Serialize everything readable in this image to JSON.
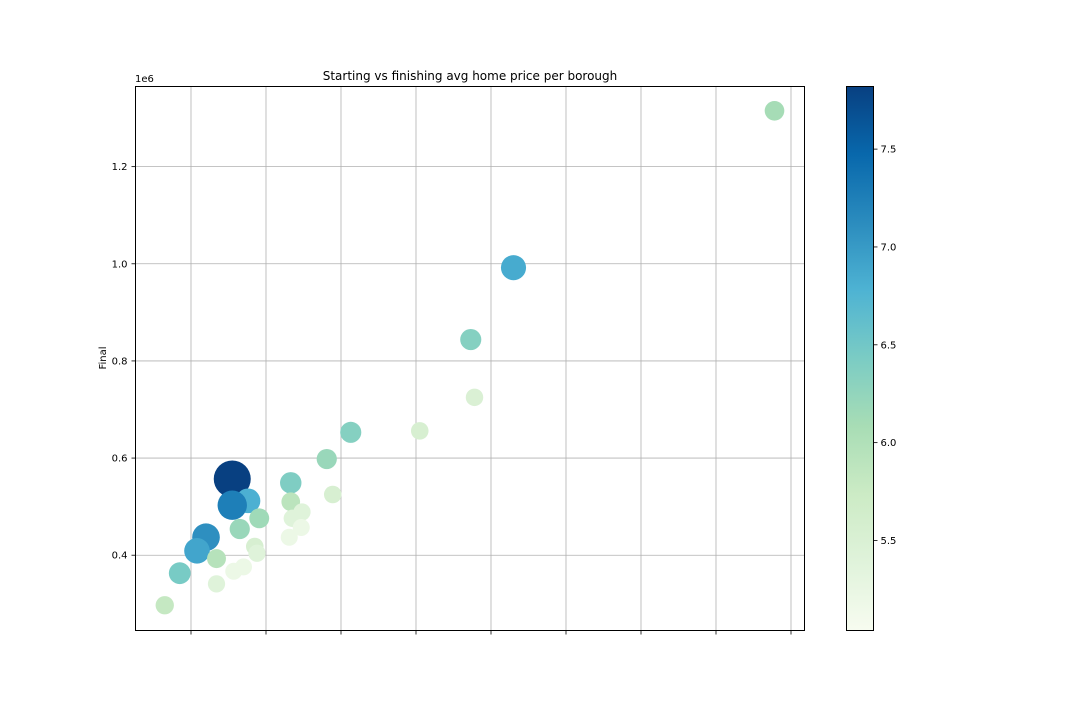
{
  "chart_data": {
    "type": "scatter",
    "title": "Starting vs finishing avg home price per borough",
    "xlabel": "",
    "ylabel": "Final",
    "y_offset_label": "1e6",
    "x_ticks": [
      0,
      1,
      2,
      3,
      4,
      5,
      6,
      7,
      8
    ],
    "y_ticks": [
      0.4,
      0.6,
      0.8,
      1.0,
      1.2
    ],
    "y_tick_labels": [
      "0.4",
      "0.6",
      "0.8",
      "1.0",
      "1.2"
    ],
    "x_tick_labels_visible": false,
    "grid": true,
    "ylim": [
      0.245,
      1.365
    ],
    "colormap": "GnBu",
    "colorbar": {
      "range": [
        5.04,
        7.82
      ],
      "ticks": [
        5.5,
        6.0,
        6.5,
        7.0,
        7.5
      ],
      "tick_labels": [
        "5.5",
        "6.0",
        "6.5",
        "7.0",
        "7.5"
      ]
    },
    "points": [
      {
        "x": 7.78,
        "y": 1.315,
        "c": 6.1
      },
      {
        "x": 4.3,
        "y": 0.992,
        "c": 6.85
      },
      {
        "x": 3.73,
        "y": 0.844,
        "c": 6.35
      },
      {
        "x": 3.78,
        "y": 0.725,
        "c": 5.5
      },
      {
        "x": 3.05,
        "y": 0.656,
        "c": 5.55
      },
      {
        "x": 2.13,
        "y": 0.653,
        "c": 6.35
      },
      {
        "x": 1.81,
        "y": 0.598,
        "c": 6.2
      },
      {
        "x": 0.55,
        "y": 0.557,
        "c": 7.82
      },
      {
        "x": 1.33,
        "y": 0.549,
        "c": 6.4
      },
      {
        "x": 1.89,
        "y": 0.525,
        "c": 5.55
      },
      {
        "x": 0.76,
        "y": 0.512,
        "c": 6.8
      },
      {
        "x": 1.33,
        "y": 0.51,
        "c": 5.9
      },
      {
        "x": 0.55,
        "y": 0.503,
        "c": 7.25
      },
      {
        "x": 1.48,
        "y": 0.489,
        "c": 5.4
      },
      {
        "x": 1.35,
        "y": 0.476,
        "c": 5.4
      },
      {
        "x": 0.91,
        "y": 0.476,
        "c": 6.15
      },
      {
        "x": 1.47,
        "y": 0.457,
        "c": 5.2
      },
      {
        "x": 0.65,
        "y": 0.454,
        "c": 6.2
      },
      {
        "x": 1.31,
        "y": 0.437,
        "c": 5.2
      },
      {
        "x": 0.2,
        "y": 0.437,
        "c": 7.1
      },
      {
        "x": 0.85,
        "y": 0.418,
        "c": 5.55
      },
      {
        "x": 0.08,
        "y": 0.409,
        "c": 6.9
      },
      {
        "x": 0.88,
        "y": 0.404,
        "c": 5.4
      },
      {
        "x": 0.34,
        "y": 0.393,
        "c": 5.95
      },
      {
        "x": 0.7,
        "y": 0.376,
        "c": 5.2
      },
      {
        "x": 0.57,
        "y": 0.367,
        "c": 5.2
      },
      {
        "x": -0.15,
        "y": 0.363,
        "c": 6.45
      },
      {
        "x": 0.34,
        "y": 0.341,
        "c": 5.4
      },
      {
        "x": -0.35,
        "y": 0.297,
        "c": 5.8
      }
    ]
  }
}
